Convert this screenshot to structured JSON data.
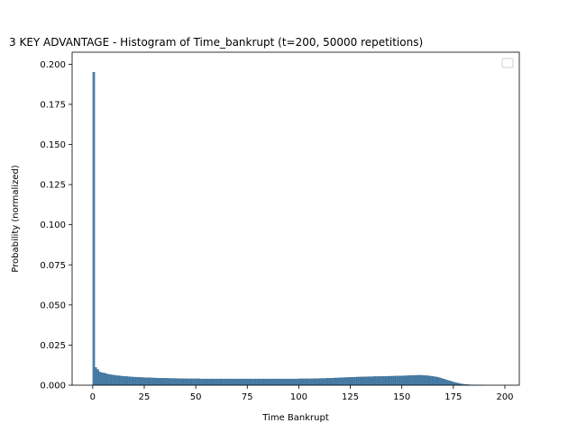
{
  "chart_data": {
    "type": "bar",
    "title": "3 KEY ADVANTAGE - Histogram of Time_bankrupt (t=200, 50000 repetitions)",
    "xlabel": "Time Bankrupt",
    "ylabel": "Probability (normalized)",
    "xlim": [
      -10,
      207
    ],
    "ylim": [
      0,
      0.2075
    ],
    "xticks": [
      0,
      25,
      50,
      75,
      100,
      125,
      150,
      175,
      200
    ],
    "yticks": [
      0.0,
      0.025,
      0.05,
      0.075,
      0.1,
      0.125,
      0.15,
      0.175,
      0.2
    ],
    "xtick_labels": [
      "0",
      "25",
      "50",
      "75",
      "100",
      "125",
      "150",
      "175",
      "200"
    ],
    "ytick_labels": [
      "0.000",
      "0.025",
      "0.050",
      "0.075",
      "0.100",
      "0.125",
      "0.150",
      "0.175",
      "0.200"
    ],
    "bin_width": 1,
    "bin_start": 0,
    "values": [
      0.195,
      0.011,
      0.0098,
      0.0082,
      0.0078,
      0.0076,
      0.0072,
      0.0068,
      0.0066,
      0.0064,
      0.0062,
      0.006,
      0.0059,
      0.0057,
      0.0056,
      0.0055,
      0.0054,
      0.0053,
      0.0052,
      0.0051,
      0.005,
      0.005,
      0.0049,
      0.0048,
      0.0048,
      0.0047,
      0.0047,
      0.0046,
      0.0046,
      0.0045,
      0.0045,
      0.0044,
      0.0044,
      0.0044,
      0.0043,
      0.0043,
      0.0043,
      0.0042,
      0.0042,
      0.0042,
      0.0042,
      0.0041,
      0.0041,
      0.0041,
      0.0041,
      0.004,
      0.004,
      0.004,
      0.004,
      0.004,
      0.004,
      0.004,
      0.0039,
      0.0039,
      0.0039,
      0.0039,
      0.0039,
      0.0039,
      0.0039,
      0.0039,
      0.0039,
      0.0039,
      0.0039,
      0.0039,
      0.0039,
      0.0039,
      0.0039,
      0.0039,
      0.0039,
      0.0039,
      0.0039,
      0.0039,
      0.0039,
      0.0039,
      0.0039,
      0.0039,
      0.0039,
      0.0039,
      0.0039,
      0.0039,
      0.0039,
      0.0039,
      0.0039,
      0.0039,
      0.0039,
      0.0039,
      0.0039,
      0.0039,
      0.0039,
      0.0039,
      0.0039,
      0.0039,
      0.0039,
      0.0039,
      0.0039,
      0.0039,
      0.0039,
      0.0039,
      0.0039,
      0.0039,
      0.004,
      0.004,
      0.004,
      0.004,
      0.004,
      0.004,
      0.004,
      0.0041,
      0.0041,
      0.0041,
      0.0042,
      0.0042,
      0.0042,
      0.0043,
      0.0043,
      0.0044,
      0.0044,
      0.0045,
      0.0045,
      0.0046,
      0.0047,
      0.0047,
      0.0048,
      0.0048,
      0.0049,
      0.0049,
      0.005,
      0.005,
      0.0051,
      0.0051,
      0.0052,
      0.0052,
      0.0052,
      0.0053,
      0.0053,
      0.0053,
      0.0054,
      0.0054,
      0.0054,
      0.0054,
      0.0055,
      0.0055,
      0.0055,
      0.0056,
      0.0056,
      0.0056,
      0.0057,
      0.0057,
      0.0058,
      0.0058,
      0.0058,
      0.0059,
      0.0059,
      0.006,
      0.006,
      0.0061,
      0.0061,
      0.0062,
      0.0062,
      0.0062,
      0.0061,
      0.006,
      0.0059,
      0.0058,
      0.0056,
      0.0054,
      0.0052,
      0.0049,
      0.0046,
      0.0042,
      0.0038,
      0.0034,
      0.003,
      0.0026,
      0.0022,
      0.0018,
      0.0015,
      0.0012,
      0.0009,
      0.0007,
      0.0005,
      0.0004,
      0.0003,
      0.0002,
      0.0001,
      0.0001,
      5e-05,
      3e-05,
      2e-05,
      1e-05,
      0.0,
      0.0,
      0.0,
      0.0,
      0.0,
      0.0,
      0.0,
      0.0,
      0.0,
      0.0,
      0.0,
      0.0,
      0.0,
      0.0,
      0.0
    ],
    "bar_color": "#4a7fa8",
    "bar_edge_color": "#2d5f86",
    "legend": {
      "placement": "top-right",
      "entries": []
    },
    "grid": false
  }
}
